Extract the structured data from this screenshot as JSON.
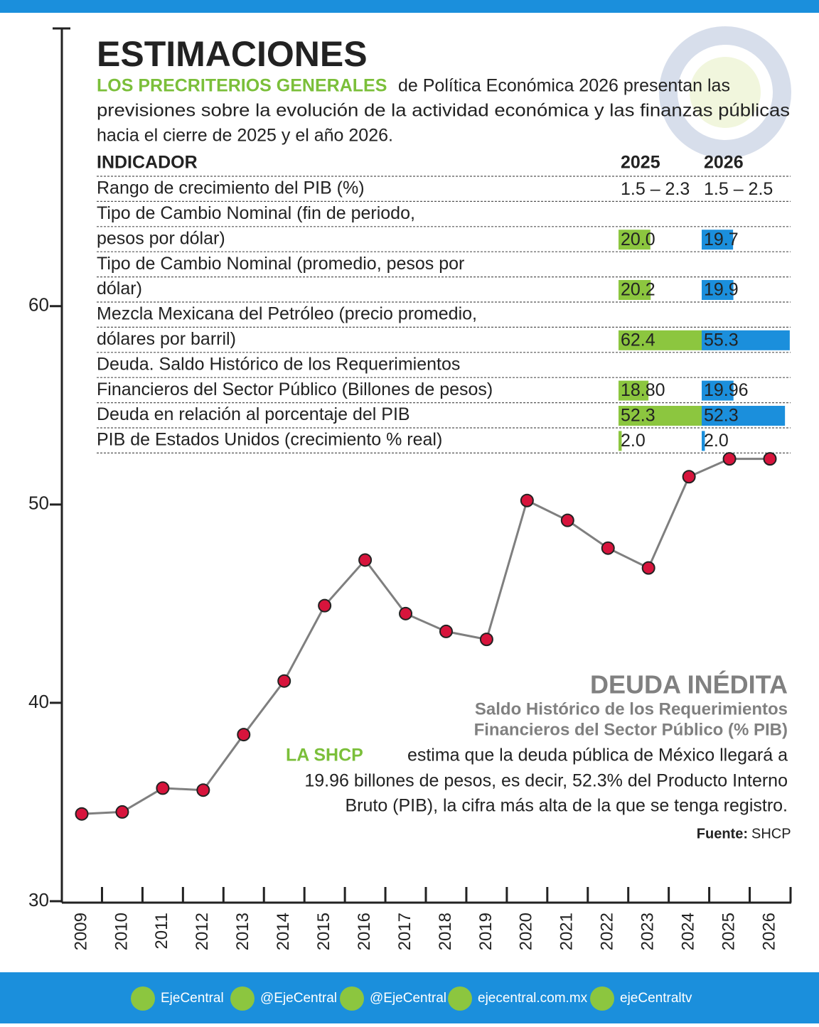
{
  "header": {
    "title": "ESTIMACIONES",
    "intro_highlight": "LOS PRECRITERIOS GENERALES",
    "intro_lines": [
      "de Política Económica 2026 presentan las",
      "previsiones sobre la evolución de la actividad económica y las finanzas públicas",
      "hacia el cierre de 2025 y el año 2026."
    ]
  },
  "table": {
    "columns": [
      "INDICADOR",
      "2025",
      "2026"
    ],
    "rows": [
      {
        "label": [
          "Rango de crecimiento del PIB (%)"
        ],
        "value_labels": [
          "1.5 – 2.3",
          "1.5 – 2.5"
        ]
      },
      {
        "label": [
          "Tipo de Cambio Nominal (fin de periodo,",
          "pesos por dólar)"
        ],
        "values": [
          20.0,
          19.7
        ],
        "value_labels": [
          "20.0",
          "19.7"
        ]
      },
      {
        "label": [
          "Tipo de Cambio Nominal (promedio, pesos por",
          "dólar)"
        ],
        "values": [
          20.2,
          19.9
        ],
        "value_labels": [
          "20.2",
          "19.9"
        ]
      },
      {
        "label": [
          "Mezcla Mexicana del Petróleo (precio promedio,",
          "dólares por barril)"
        ],
        "values": [
          62.4,
          55.3
        ],
        "value_labels": [
          "62.4",
          "55.3"
        ]
      },
      {
        "label": [
          "Deuda. Saldo Histórico de los Requerimientos",
          "Financieros del Sector Público (Billones de pesos)"
        ],
        "values": [
          18.8,
          19.96
        ],
        "value_labels": [
          "18.80",
          "19.96"
        ]
      },
      {
        "label": [
          "Deuda en relación al porcentaje del PIB"
        ],
        "values": [
          52.3,
          52.3
        ],
        "value_labels": [
          "52.3",
          "52.3"
        ]
      },
      {
        "label": [
          "PIB de Estados Unidos (crecimiento % real)"
        ],
        "values": [
          2.0,
          2.0
        ],
        "value_labels": [
          "2.0",
          "2.0"
        ]
      }
    ]
  },
  "chart_data": {
    "type": "line",
    "categories": [
      "2009",
      "2010",
      "2011",
      "2012",
      "2013",
      "2014",
      "2015",
      "2016",
      "2017",
      "2018",
      "2019",
      "2020",
      "2021",
      "2022",
      "2023",
      "2024",
      "2025",
      "2026"
    ],
    "values": [
      34.4,
      34.5,
      35.7,
      35.6,
      38.4,
      41.1,
      44.9,
      47.2,
      44.5,
      43.6,
      43.2,
      50.2,
      49.2,
      47.8,
      46.8,
      51.4,
      52.3,
      52.3
    ],
    "color": "#d7143c",
    "ylim": [
      30,
      74
    ],
    "yticks": [
      30,
      40,
      50,
      60
    ]
  },
  "annotation": {
    "title": "DEUDA INÉDITA",
    "subtitle": [
      "Saldo Histórico de los Requerimientos",
      "Financieros del Sector Público  (% PIB)"
    ],
    "lead": "LA SHCP",
    "body": [
      "estima que la deuda pública de México llegará a",
      "19.96 billones de pesos, es decir, 52.3% del Producto Interno",
      "Bruto (PIB), la cifra más alta de la que se tenga registro."
    ],
    "source_label": "Fuente:",
    "source": "SHCP"
  },
  "footer": [
    "EjeCentral",
    "@EjeCentral",
    "@EjeCentral",
    "ejecentral.com.mx",
    "ejeCentraltv"
  ]
}
